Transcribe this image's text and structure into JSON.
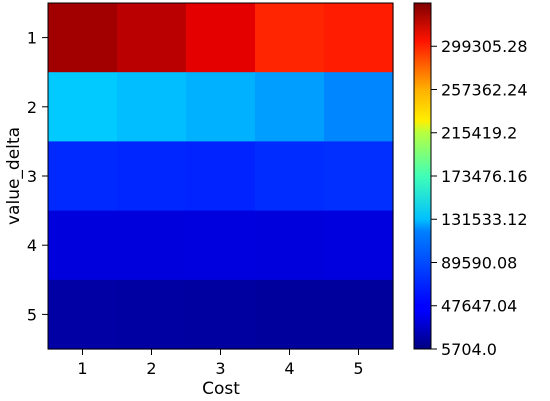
{
  "chart_data": {
    "type": "heatmap",
    "title": "",
    "xlabel": "Cost",
    "ylabel": "value_delta",
    "x_categories": [
      "1",
      "2",
      "3",
      "4",
      "5"
    ],
    "y_categories": [
      "1",
      "2",
      "3",
      "4",
      "5"
    ],
    "values": [
      [
        330000,
        322000,
        308000,
        287000,
        290000
      ],
      [
        114000,
        110000,
        106000,
        100000,
        92000
      ],
      [
        61000,
        60000,
        59000,
        62000,
        63000
      ],
      [
        36000,
        36500,
        37000,
        36000,
        37000
      ],
      [
        18000,
        17000,
        16500,
        15500,
        15000
      ]
    ],
    "colorscale": "jet",
    "colorbar": {
      "min": 5704.0,
      "max": 341248.0,
      "ticks": [
        "5704.0",
        "47647.04",
        "89590.08",
        "131533.12",
        "173476.16",
        "215419.2",
        "257362.24",
        "299305.28"
      ]
    },
    "grid": false
  }
}
